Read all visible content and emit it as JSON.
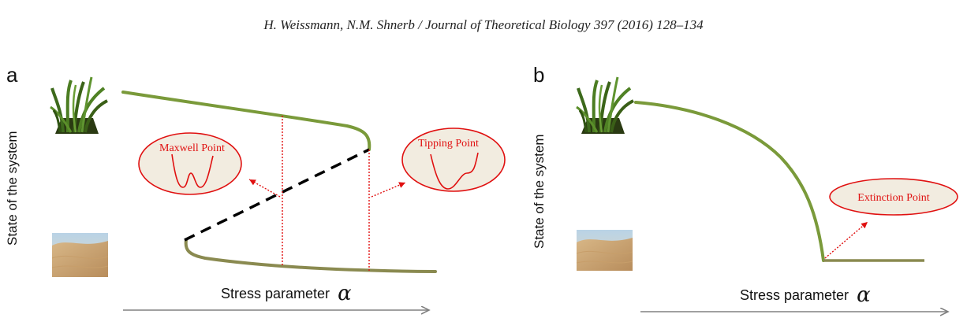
{
  "header": {
    "citation": "H. Weissmann, N.M. Shnerb / Journal of Theoretical Biology 397 (2016) 128–134"
  },
  "panels": [
    {
      "letter": "a",
      "ylabel": "State of the system",
      "xlabel": "Stress parameter",
      "xsymbol": "α",
      "callouts": [
        "Maxwell Point",
        "Tipping Point"
      ]
    },
    {
      "letter": "b",
      "ylabel": "State of the system",
      "xlabel": "Stress parameter",
      "xsymbol": "α",
      "callouts": [
        "Extinction Point"
      ]
    }
  ],
  "colors": {
    "vegetated_branch": "#7a9a3a",
    "desert_branch": "#8a8a50",
    "unstable_branch": "#000000",
    "marker": "#e01010",
    "callout_fill": "#f2ece0",
    "axis_arrow": "#808080"
  },
  "icons": {
    "high_state": "grass-tuft-icon",
    "low_state": "desert-dunes-icon"
  }
}
